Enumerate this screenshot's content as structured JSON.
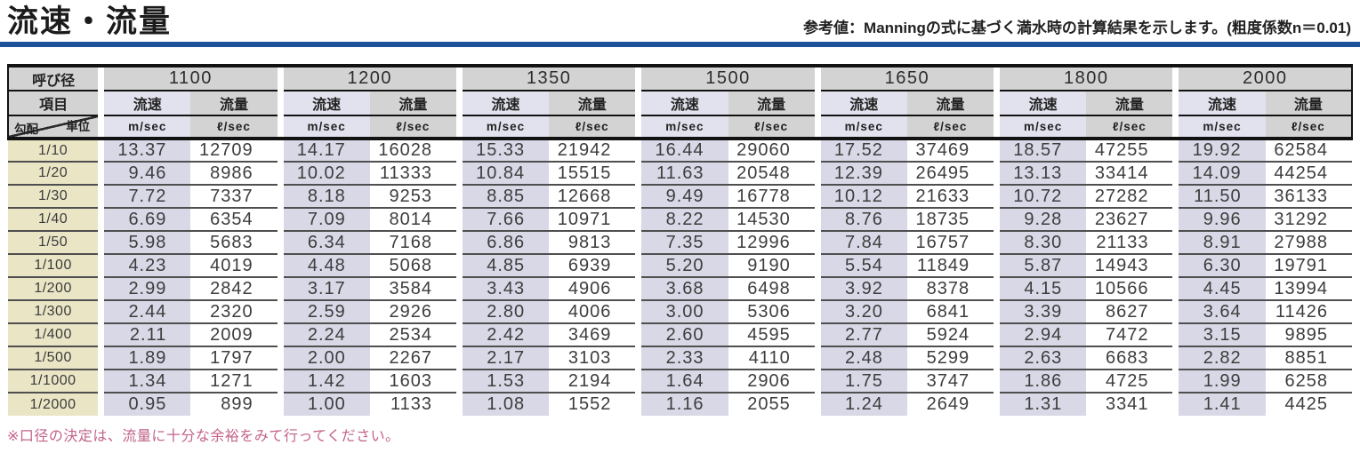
{
  "title": "流速・流量",
  "subtitle": "参考値：Manningの式に基づく満水時の計算結果を示します。(粗度係数n＝0.01)",
  "footnote": "※口径の決定は、流量に十分な余裕をみて行ってください。",
  "colors": {
    "blue_bar": "#1d5199",
    "header_gray": "#d3d3d3",
    "header_lavender": "#e2e2ee",
    "data_lavender": "#d8d8e7",
    "slope_beige": "#e9e5c5",
    "row_line": "#4f4f4f",
    "border_black": "#121212",
    "footnote_pink": "#c2638b"
  },
  "table": {
    "corner": {
      "diameter_label": "呼び径",
      "item_label": "項目",
      "unit_label": "単位",
      "slope_label": "勾配"
    },
    "diameters": [
      "1100",
      "1200",
      "1350",
      "1500",
      "1650",
      "1800",
      "2000"
    ],
    "item_headers": {
      "velocity": "流速",
      "flow": "流量"
    },
    "units": {
      "velocity": "m/sec",
      "flow": "ℓ/sec"
    },
    "rows": [
      {
        "slope": "1/10",
        "values": [
          "13.37",
          "12709",
          "14.17",
          "16028",
          "15.33",
          "21942",
          "16.44",
          "29060",
          "17.52",
          "37469",
          "18.57",
          "47255",
          "19.92",
          "62584"
        ]
      },
      {
        "slope": "1/20",
        "values": [
          "9.46",
          "8986",
          "10.02",
          "11333",
          "10.84",
          "15515",
          "11.63",
          "20548",
          "12.39",
          "26495",
          "13.13",
          "33414",
          "14.09",
          "44254"
        ]
      },
      {
        "slope": "1/30",
        "values": [
          "7.72",
          "7337",
          "8.18",
          "9253",
          "8.85",
          "12668",
          "9.49",
          "16778",
          "10.12",
          "21633",
          "10.72",
          "27282",
          "11.50",
          "36133"
        ]
      },
      {
        "slope": "1/40",
        "values": [
          "6.69",
          "6354",
          "7.09",
          "8014",
          "7.66",
          "10971",
          "8.22",
          "14530",
          "8.76",
          "18735",
          "9.28",
          "23627",
          "9.96",
          "31292"
        ]
      },
      {
        "slope": "1/50",
        "values": [
          "5.98",
          "5683",
          "6.34",
          "7168",
          "6.86",
          "9813",
          "7.35",
          "12996",
          "7.84",
          "16757",
          "8.30",
          "21133",
          "8.91",
          "27988"
        ]
      },
      {
        "slope": "1/100",
        "values": [
          "4.23",
          "4019",
          "4.48",
          "5068",
          "4.85",
          "6939",
          "5.20",
          "9190",
          "5.54",
          "11849",
          "5.87",
          "14943",
          "6.30",
          "19791"
        ]
      },
      {
        "slope": "1/200",
        "values": [
          "2.99",
          "2842",
          "3.17",
          "3584",
          "3.43",
          "4906",
          "3.68",
          "6498",
          "3.92",
          "8378",
          "4.15",
          "10566",
          "4.45",
          "13994"
        ]
      },
      {
        "slope": "1/300",
        "values": [
          "2.44",
          "2320",
          "2.59",
          "2926",
          "2.80",
          "4006",
          "3.00",
          "5306",
          "3.20",
          "6841",
          "3.39",
          "8627",
          "3.64",
          "11426"
        ]
      },
      {
        "slope": "1/400",
        "values": [
          "2.11",
          "2009",
          "2.24",
          "2534",
          "2.42",
          "3469",
          "2.60",
          "4595",
          "2.77",
          "5924",
          "2.94",
          "7472",
          "3.15",
          "9895"
        ]
      },
      {
        "slope": "1/500",
        "values": [
          "1.89",
          "1797",
          "2.00",
          "2267",
          "2.17",
          "3103",
          "2.33",
          "4110",
          "2.48",
          "5299",
          "2.63",
          "6683",
          "2.82",
          "8851"
        ]
      },
      {
        "slope": "1/1000",
        "values": [
          "1.34",
          "1271",
          "1.42",
          "1603",
          "1.53",
          "2194",
          "1.64",
          "2906",
          "1.75",
          "3747",
          "1.86",
          "4725",
          "1.99",
          "6258"
        ]
      },
      {
        "slope": "1/2000",
        "values": [
          "0.95",
          "899",
          "1.00",
          "1133",
          "1.08",
          "1552",
          "1.16",
          "2055",
          "1.24",
          "2649",
          "1.31",
          "3341",
          "1.41",
          "4425"
        ]
      }
    ]
  }
}
